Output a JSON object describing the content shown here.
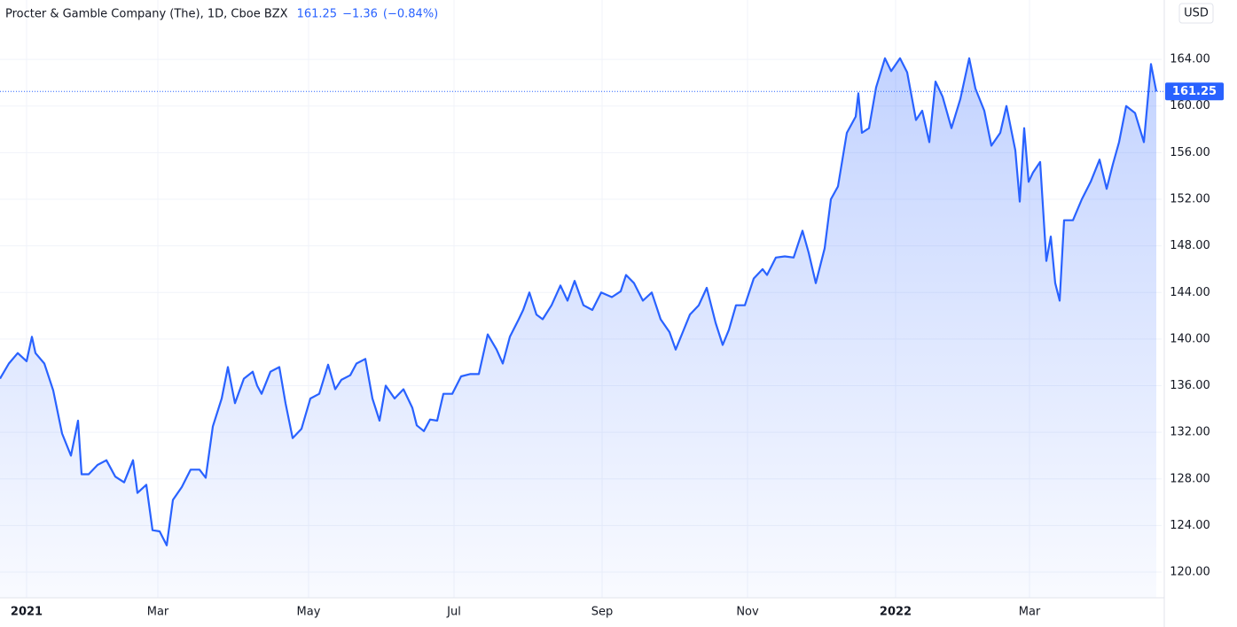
{
  "chart_data": {
    "type": "area",
    "title": "Procter & Gamble Company (The), 1D, Cboe BZX",
    "last_price": {
      "value": 161.25,
      "label": "161.25"
    },
    "change": "−1.36",
    "change_pct": "(−0.84%)",
    "currency": "USD",
    "color": "#2962ff",
    "grid": true,
    "x": [
      0,
      10,
      20,
      30,
      36,
      40,
      50,
      60,
      70,
      80,
      88,
      92,
      100,
      110,
      120,
      130,
      140,
      150,
      155,
      165,
      172,
      180,
      188,
      195,
      205,
      215,
      225,
      232,
      240,
      250,
      257,
      265,
      275,
      285,
      290,
      295,
      305,
      315,
      322,
      330,
      340,
      350,
      360,
      370,
      378,
      385,
      395,
      402,
      412,
      420,
      428,
      435,
      445,
      455,
      465,
      470,
      478,
      485,
      493,
      500,
      510,
      520,
      530,
      540,
      550,
      560,
      567,
      575,
      585,
      590,
      597,
      605,
      612,
      622,
      632,
      640,
      648,
      658,
      668,
      678,
      690,
      700,
      706,
      715,
      725,
      735,
      745,
      755,
      762,
      770,
      778,
      788,
      797,
      807,
      815,
      822,
      830,
      840,
      850,
      860,
      865,
      875,
      885,
      895,
      905,
      912,
      920,
      930,
      937,
      945,
      955,
      965,
      968,
      972,
      980,
      988,
      998,
      1005,
      1015,
      1023,
      1033,
      1040,
      1048,
      1055,
      1063,
      1073,
      1083,
      1093,
      1100,
      1110,
      1118,
      1128,
      1135,
      1145,
      1150,
      1155,
      1160,
      1165,
      1173,
      1180,
      1185,
      1190,
      1195,
      1200,
      1210,
      1220,
      1230,
      1240,
      1248,
      1255,
      1262,
      1270,
      1280,
      1290,
      1298,
      1304
    ],
    "values": [
      136.6,
      137.9,
      138.8,
      138.1,
      140.2,
      138.8,
      137.9,
      135.6,
      131.9,
      130.0,
      133.0,
      128.4,
      128.4,
      129.2,
      129.6,
      128.2,
      127.7,
      129.6,
      126.8,
      127.5,
      123.6,
      123.5,
      122.3,
      126.2,
      127.3,
      128.8,
      128.8,
      128.1,
      132.5,
      134.9,
      137.6,
      134.5,
      136.6,
      137.2,
      136.0,
      135.3,
      137.2,
      137.6,
      134.5,
      131.5,
      132.3,
      134.9,
      135.3,
      137.8,
      135.7,
      136.5,
      136.9,
      137.9,
      138.3,
      134.9,
      133.0,
      136.0,
      134.9,
      135.7,
      134.1,
      132.6,
      132.1,
      133.1,
      133.0,
      135.3,
      135.3,
      136.8,
      137.0,
      137.0,
      140.4,
      139.1,
      137.9,
      140.2,
      141.7,
      142.5,
      144.0,
      142.1,
      141.7,
      142.9,
      144.6,
      143.3,
      145.0,
      142.9,
      142.5,
      144.0,
      143.6,
      144.1,
      145.5,
      144.8,
      143.3,
      144.0,
      141.7,
      140.6,
      139.1,
      140.6,
      142.1,
      142.9,
      144.4,
      141.4,
      139.5,
      140.8,
      142.9,
      142.9,
      145.2,
      146.0,
      145.5,
      147.0,
      147.1,
      147.0,
      149.3,
      147.4,
      144.8,
      147.8,
      152.0,
      153.1,
      157.7,
      159.1,
      161.1,
      157.7,
      158.1,
      161.6,
      164.1,
      163.0,
      164.1,
      162.9,
      158.8,
      159.6,
      156.9,
      162.1,
      160.8,
      158.1,
      160.6,
      164.1,
      161.5,
      159.6,
      156.6,
      157.7,
      160.0,
      156.2,
      151.8,
      158.1,
      153.5,
      154.3,
      155.2,
      146.7,
      148.8,
      144.8,
      143.3,
      150.2,
      150.2,
      152.0,
      153.5,
      155.4,
      152.9,
      155.0,
      156.9,
      160.0,
      159.4,
      156.9,
      163.6,
      161.25
    ],
    "xlim": [
      0,
      1310
    ],
    "xticks": [
      {
        "value": 30,
        "label": "2021"
      },
      {
        "value": 178,
        "label": "Mar"
      },
      {
        "value": 348,
        "label": "May"
      },
      {
        "value": 512,
        "label": "Jul"
      },
      {
        "value": 679,
        "label": "Sep"
      },
      {
        "value": 843,
        "label": "Nov"
      },
      {
        "value": 1010,
        "label": "2022"
      },
      {
        "value": 1161,
        "label": "Mar"
      }
    ],
    "ylim": [
      117.8,
      169.1
    ],
    "yticks": [
      {
        "value": 120,
        "label": "120.00"
      },
      {
        "value": 124,
        "label": "124.00"
      },
      {
        "value": 128,
        "label": "128.00"
      },
      {
        "value": 132,
        "label": "132.00"
      },
      {
        "value": 136,
        "label": "136.00"
      },
      {
        "value": 140,
        "label": "140.00"
      },
      {
        "value": 144,
        "label": "144.00"
      },
      {
        "value": 148,
        "label": "148.00"
      },
      {
        "value": 152,
        "label": "152.00"
      },
      {
        "value": 156,
        "label": "156.00"
      },
      {
        "value": 160,
        "label": "160.00"
      },
      {
        "value": 164,
        "label": "164.00"
      }
    ]
  }
}
